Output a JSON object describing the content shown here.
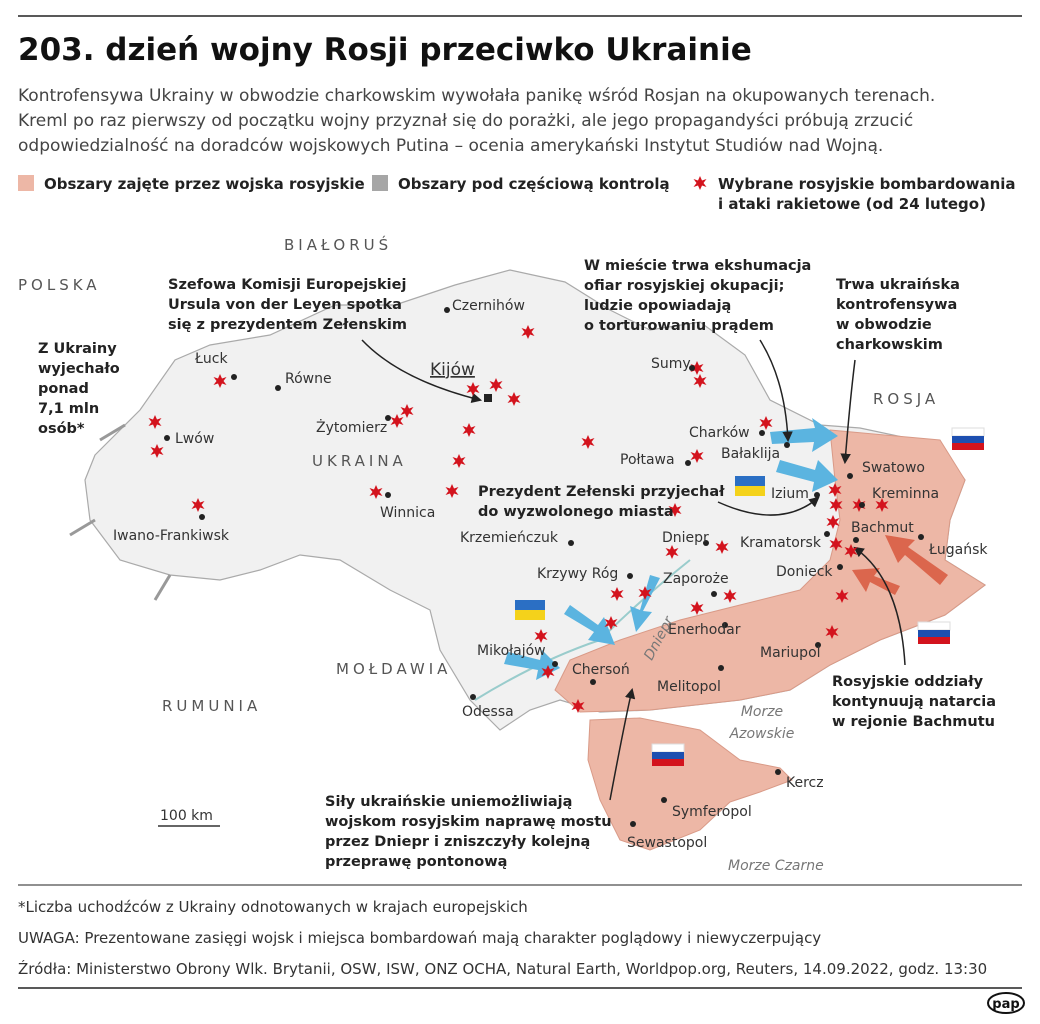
{
  "header": {
    "title": "203. dzień wojny Rosji przeciwko Ukrainie",
    "subtitle_lines": [
      "Kontrofensywa Ukrainy w obwodzie charkowskim wywołała panikę wśród Rosjan na okupowanych terenach.",
      "Kreml po raz pierwszy od początku wojny przyznał się do porażki, ale jego propagandyści próbują zrzucić",
      "odpowiedzialność na doradców wojskowych Putina – ocenia amerykański Instytut Studiów nad Wojną."
    ]
  },
  "legend": {
    "occupied": "Obszary zajęte przez wojska rosyjskie",
    "partial": "Obszary pod częściową kontrolą",
    "strikes_lines": [
      "Wybrane rosyjskie bombardowania",
      "i ataki rakietowe (od 24 lutego)"
    ]
  },
  "map": {
    "countries": [
      "BIAŁORUŚ",
      "POLSKA",
      "ROSJA",
      "UKRAINA",
      "MOŁDAWIA",
      "RUMUNIA"
    ],
    "seas": [
      {
        "lines": [
          "Morze",
          "Azowskie"
        ]
      },
      {
        "lines": [
          "Morze Czarne"
        ]
      }
    ],
    "river": "Dniepr",
    "cities": [
      "Łuck",
      "Równe",
      "Lwów",
      "Iwano-Frankiwsk",
      "Żytomierz",
      "Kijów",
      "Czernihów",
      "Sumy",
      "Charków",
      "Bałaklija",
      "Połtawa",
      "Izium",
      "Winnica",
      "Krzemieńczuk",
      "Dniepr",
      "Krzywy Róg",
      "Zaporoże",
      "Enerhodar",
      "Mikołajów",
      "Chersoń",
      "Odessa",
      "Melitopol",
      "Mariupol",
      "Donieck",
      "Kramatorsk",
      "Bachmut",
      "Ługańsk",
      "Swatowo",
      "Kreminna",
      "Kercz",
      "Symferopol",
      "Sewastopol"
    ],
    "annotations": [
      {
        "lines": [
          "Z Ukrainy",
          "wyjechało",
          "ponad",
          "7,1 mln",
          "osób*"
        ]
      },
      {
        "lines": [
          "Szefowa Komisji Europejskiej",
          "Ursula von der Leyen spotka",
          "się z prezydentem Zełenskim"
        ]
      },
      {
        "lines": [
          "W mieście trwa ekshumacja",
          "ofiar rosyjskiej okupacji;",
          "ludzie opowiadają",
          "o torturowaniu prądem"
        ]
      },
      {
        "lines": [
          "Trwa ukraińska",
          "kontrofensywa",
          "w obwodzie",
          "charkowskim"
        ]
      },
      {
        "lines": [
          "Prezydent Zełenski przyjechał",
          "do wyzwolonego miasta"
        ]
      },
      {
        "lines": [
          "Rosyjskie oddziały",
          "kontynuują natarcia",
          "w rejonie Bachmutu"
        ]
      },
      {
        "lines": [
          "Siły ukraińskie uniemożliwiają",
          "wojskom rosyjskim naprawę mostu",
          "przez Dniepr i zniszczyły kolejną",
          "przeprawę pontonową"
        ]
      }
    ],
    "scale": "100 km"
  },
  "footer": {
    "note": "*Liczba uchodźców z Ukrainy odnotowanych w krajach europejskich",
    "warning": "UWAGA: Prezentowane zasięgi wojsk i miejsca bombardowań mają charakter poglądowy i niewyczerpujący",
    "sources": "Źródła: Ministerstwo Obrony Wlk. Brytanii, OSW, ISW, ONZ OCHA, Natural Earth, Worldpop.org, Reuters, 14.09.2022, godz. 13:30",
    "logo": "pap"
  }
}
